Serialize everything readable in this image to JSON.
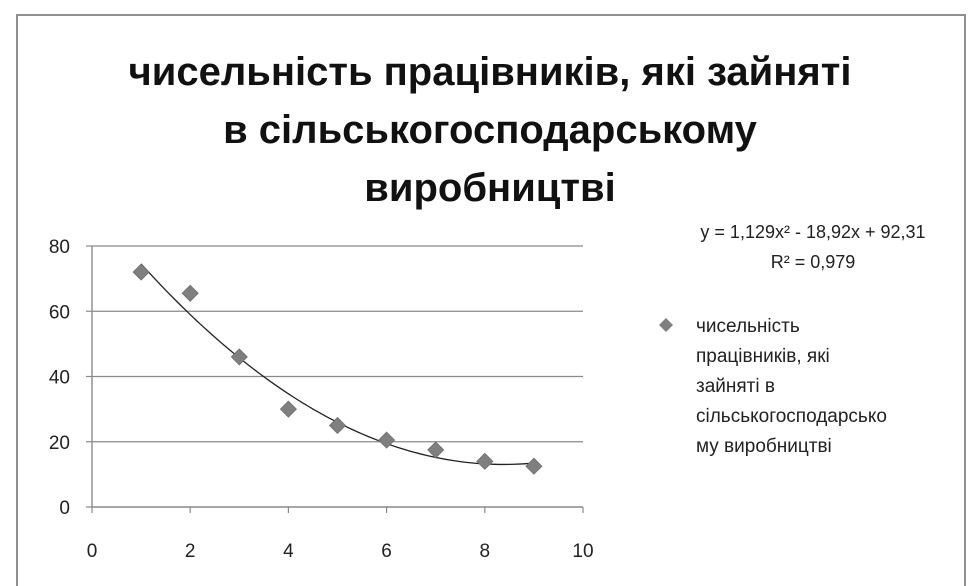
{
  "chart_data": {
    "type": "scatter",
    "title_lines": [
      "чисельність працівників, які зайняті",
      "в сільськогосподарському",
      "виробництві"
    ],
    "xlim": [
      0,
      10
    ],
    "ylim": [
      0,
      80
    ],
    "xticks": [
      "0",
      "2",
      "4",
      "6",
      "8",
      "10"
    ],
    "yticks": [
      "0",
      "20",
      "40",
      "60",
      "80"
    ],
    "grid": "horizontal",
    "marker_color": "#7f7f7f",
    "trend_color": "#222222",
    "series": [
      {
        "name": "чисельність працівників, які зайняті в сільськогосподарському виробництві",
        "x": [
          1,
          2,
          3,
          4,
          5,
          6,
          7,
          8,
          9
        ],
        "y": [
          72,
          65.5,
          46,
          30,
          25,
          20.5,
          17.5,
          14,
          12.5
        ]
      }
    ],
    "trendline": {
      "type": "polynomial",
      "coefficients": [
        1.129,
        -18.92,
        92.31
      ],
      "equation": "y = 1,129x² - 18,92x + 92,31",
      "r2": "R² = 0,979"
    },
    "legend": {
      "position": "right",
      "lines": [
        "чисельність",
        "працівників, які",
        "зайняті в",
        "сільськогосподарсько",
        "му виробництві"
      ]
    }
  }
}
